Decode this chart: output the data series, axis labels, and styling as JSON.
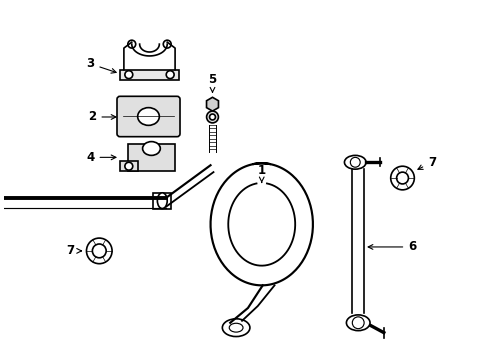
{
  "background_color": "#ffffff",
  "line_color": "#000000",
  "lw": 1.2,
  "lw_thick": 2.8,
  "lw_thin": 0.7,
  "fs": 8.5
}
